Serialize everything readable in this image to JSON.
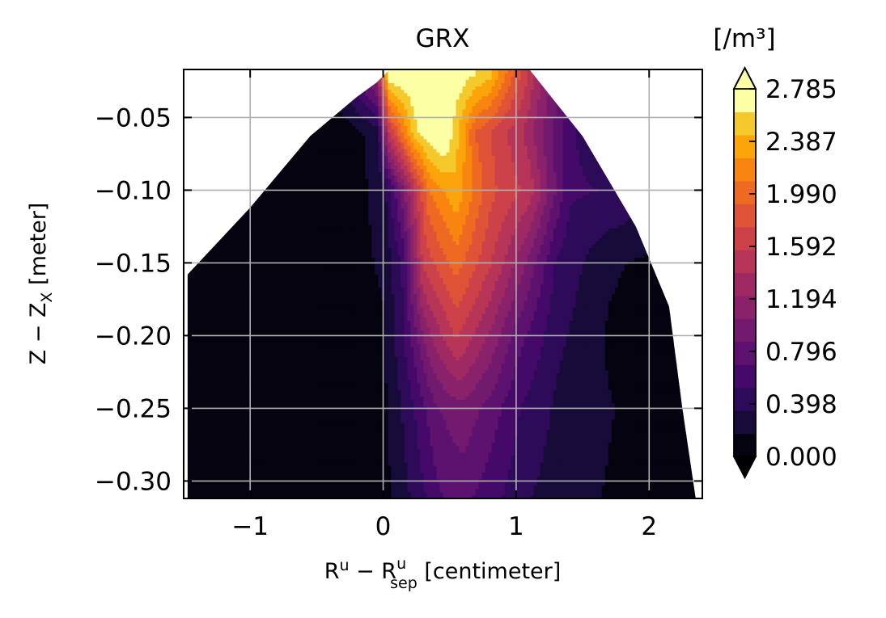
{
  "chart_data": {
    "type": "heatmap",
    "title": "GRX",
    "xlabel": {
      "main": "R",
      "main_sup": "u",
      "minus": " − R",
      "sep_sup": "u",
      "sep_sub": "sep",
      "unit": " [centimeter]"
    },
    "ylabel": {
      "main": "Z − Z",
      "sub": "X",
      "unit": " [meter]"
    },
    "xlim": [
      -1.5,
      2.4
    ],
    "ylim": [
      -0.312,
      -0.017
    ],
    "x_ticks": [
      {
        "value": -1,
        "label": "−1"
      },
      {
        "value": 0,
        "label": "0"
      },
      {
        "value": 1,
        "label": "1"
      },
      {
        "value": 2,
        "label": "2"
      }
    ],
    "y_ticks": [
      {
        "value": -0.05,
        "label": "−0.05"
      },
      {
        "value": -0.1,
        "label": "−0.10"
      },
      {
        "value": -0.15,
        "label": "−0.15"
      },
      {
        "value": -0.2,
        "label": "−0.20"
      },
      {
        "value": -0.25,
        "label": "−0.25"
      },
      {
        "value": -0.3,
        "label": "−0.30"
      }
    ],
    "grid": true,
    "colorbar": {
      "unit": "[/m³]",
      "min": 0.0,
      "max": 2.785,
      "extend": "both",
      "tick_values": [
        0.0,
        0.398,
        0.796,
        1.194,
        1.592,
        1.99,
        2.387,
        2.785
      ],
      "tick_labels": [
        "0.000",
        "0.398",
        "0.796",
        "1.194",
        "1.592",
        "1.990",
        "2.387",
        "2.785"
      ],
      "levels": 14,
      "colors": [
        "#04030f",
        "#160b39",
        "#2d0b59",
        "#450a69",
        "#5c126e",
        "#721a6e",
        "#89226a",
        "#9f2a63",
        "#b73557",
        "#cc4248",
        "#df5337",
        "#ee6a22",
        "#f8850f",
        "#fca50a",
        "#f5c82c",
        "#fcffa4"
      ],
      "under_color": "#000004",
      "over_color": "#fcffa4"
    },
    "field": {
      "boundary": {
        "left_edge": [
          [
            -1.47,
            -0.312
          ],
          [
            -1.47,
            -0.158
          ],
          [
            -1.0,
            -0.112
          ],
          [
            -0.55,
            -0.063
          ],
          [
            -0.2,
            -0.036
          ],
          [
            -0.05,
            -0.026
          ]
        ],
        "top_edge": [
          [
            -0.05,
            -0.026
          ],
          [
            0.05,
            -0.017
          ],
          [
            1.1,
            -0.017
          ]
        ],
        "right_edge": [
          [
            1.1,
            -0.017
          ],
          [
            1.5,
            -0.063
          ],
          [
            1.9,
            -0.125
          ],
          [
            2.15,
            -0.18
          ],
          [
            2.25,
            -0.25
          ],
          [
            2.35,
            -0.312
          ]
        ]
      },
      "profile": [
        {
          "z": -0.02,
          "x": [
            -0.3,
            -0.05,
            0.0,
            0.05,
            0.2,
            0.5,
            0.8,
            1.2,
            1.6
          ],
          "v": [
            0.4,
            1.2,
            2.0,
            2.8,
            2.8,
            2.8,
            2.5,
            1.2,
            0.4
          ]
        },
        {
          "z": -0.06,
          "x": [
            -1.0,
            -0.3,
            -0.05,
            0.05,
            0.25,
            0.45,
            0.7,
            1.05,
            1.4,
            1.9
          ],
          "v": [
            0.02,
            0.06,
            0.25,
            1.6,
            2.6,
            2.9,
            1.9,
            1.4,
            0.55,
            0.25
          ]
        },
        {
          "z": -0.1,
          "x": [
            -1.2,
            -0.3,
            0.0,
            0.15,
            0.35,
            0.55,
            0.8,
            1.1,
            1.4,
            1.8,
            2.1
          ],
          "v": [
            0.02,
            0.05,
            0.25,
            1.0,
            2.1,
            2.4,
            1.8,
            1.5,
            0.55,
            0.5,
            0.3
          ]
        },
        {
          "z": -0.15,
          "x": [
            -1.4,
            -0.4,
            0.0,
            0.15,
            0.3,
            0.55,
            0.8,
            1.05,
            1.3,
            1.7,
            2.2
          ],
          "v": [
            0.02,
            0.05,
            0.2,
            0.55,
            1.6,
            2.0,
            1.6,
            1.1,
            0.5,
            0.2,
            0.1
          ]
        },
        {
          "z": -0.2,
          "x": [
            -1.4,
            -0.4,
            0.0,
            0.15,
            0.35,
            0.55,
            0.8,
            1.0,
            1.3,
            1.7,
            2.3
          ],
          "v": [
            0.02,
            0.05,
            0.15,
            0.5,
            1.2,
            1.6,
            1.2,
            0.8,
            0.4,
            0.15,
            0.05
          ]
        },
        {
          "z": -0.25,
          "x": [
            -1.4,
            -0.4,
            0.0,
            0.2,
            0.4,
            0.6,
            0.8,
            1.05,
            1.4,
            2.3
          ],
          "v": [
            0.02,
            0.05,
            0.12,
            0.45,
            0.85,
            1.0,
            0.8,
            0.5,
            0.25,
            0.05
          ]
        },
        {
          "z": -0.312,
          "x": [
            -1.4,
            -0.4,
            0.0,
            0.2,
            0.45,
            0.6,
            0.8,
            1.1,
            1.5,
            2.3
          ],
          "v": [
            0.02,
            0.05,
            0.1,
            0.35,
            0.7,
            0.75,
            0.6,
            0.35,
            0.2,
            0.05
          ]
        }
      ]
    }
  }
}
